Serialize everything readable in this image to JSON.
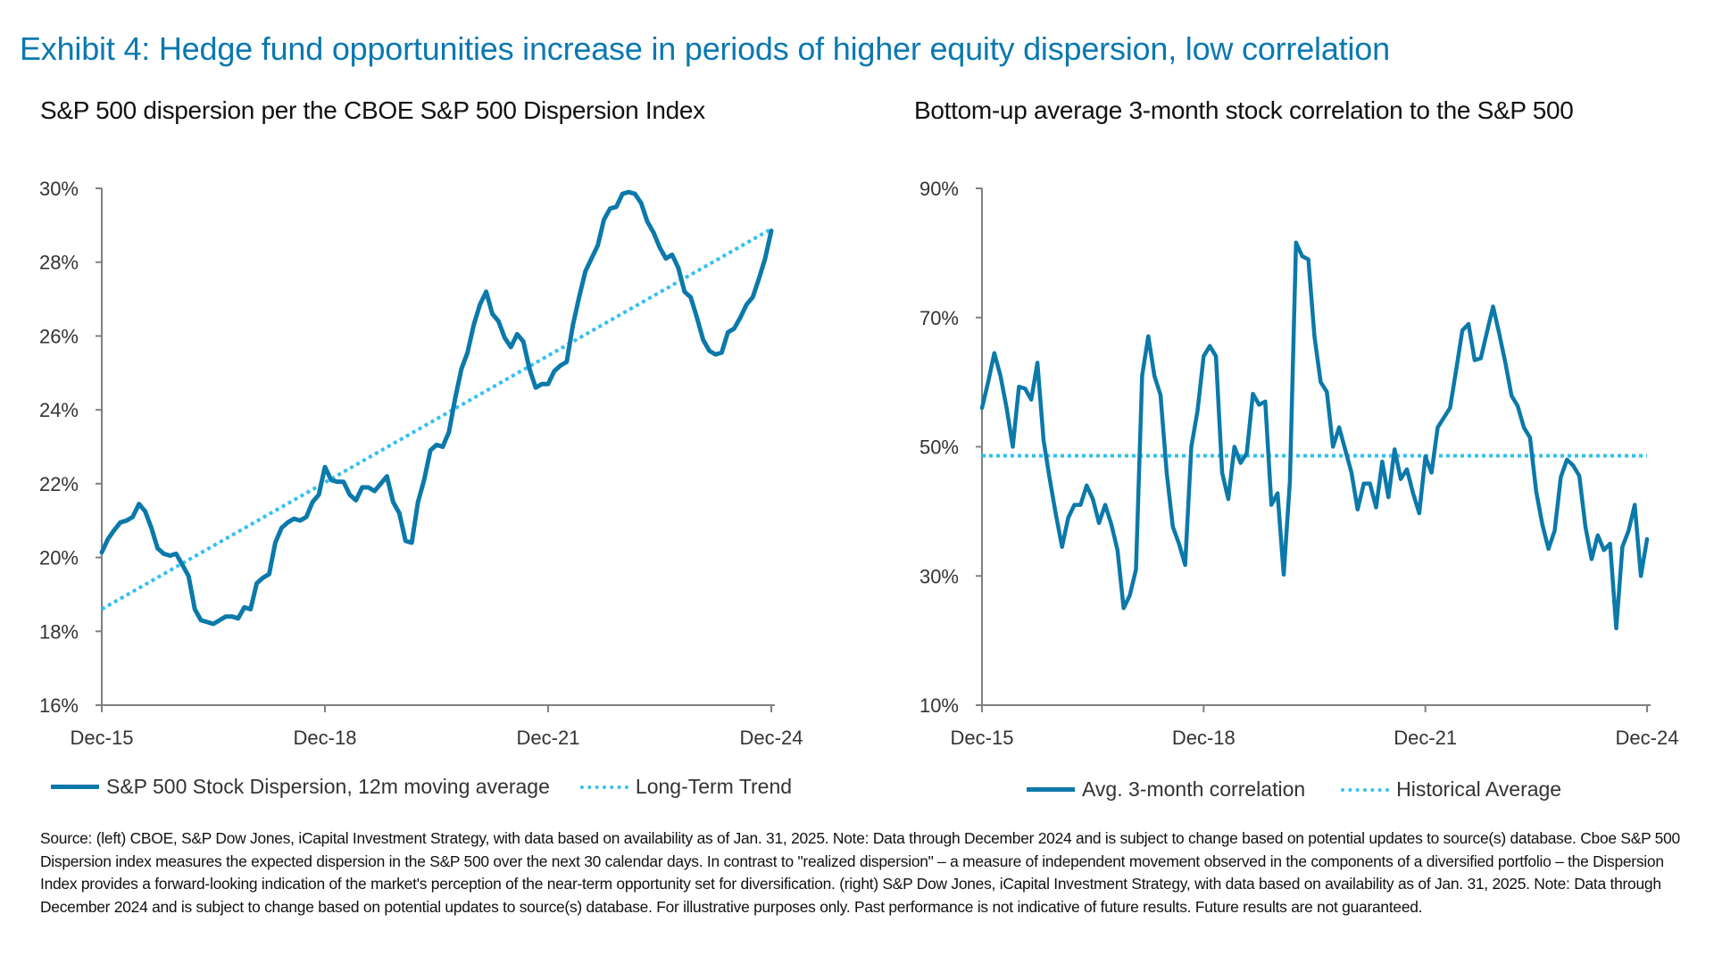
{
  "title": "Exhibit 4: Hedge fund opportunities increase in periods of higher equity dispersion, low correlation",
  "footnote": "Source: (left) CBOE, S&P Dow Jones, iCapital Investment Strategy, with data based on availability as of Jan. 31, 2025. Note: Data through December 2024 and is subject to change based on potential updates to source(s) database. Cboe S&P 500 Dispersion index measures the expected dispersion in the S&P 500 over the next 30 calendar days. In contrast to \"realized dispersion\" – a measure of independent movement observed in the components of a diversified portfolio – the Dispersion Index provides a forward-looking indication of the market's perception of the near-term opportunity set for diversification. (right) S&P Dow Jones, iCapital Investment Strategy, with data based on availability as of Jan. 31, 2025. Note: Data through December 2024 and is subject to change based on potential updates to source(s) database. For illustrative purposes only. Past performance is not indicative of future results. Future results are not guaranteed.",
  "colors": {
    "title": "#0a78b0",
    "series": "#0b79aa",
    "reference": "#33bff3",
    "axis": "#808080"
  },
  "chart_data": [
    {
      "type": "line",
      "title": "S&P 500 dispersion per the CBOE S&P 500 Dispersion Index",
      "x_start": "2015-12",
      "frequency": "monthly",
      "x_ticks": [
        "Dec-15",
        "Dec-18",
        "Dec-21",
        "Dec-24"
      ],
      "y_ticks": [
        "16%",
        "18%",
        "20%",
        "22%",
        "24%",
        "26%",
        "28%",
        "30%"
      ],
      "ylim": [
        16,
        30
      ],
      "y_unit": "%",
      "grid": false,
      "legend_placement": "bottom",
      "series": [
        {
          "name": "S&P 500 Stock Dispersion, 12m moving average",
          "style": "solid",
          "values": [
            20.14,
            20.5,
            20.74,
            20.95,
            21.0,
            21.1,
            21.45,
            21.25,
            20.8,
            20.25,
            20.1,
            20.05,
            20.1,
            19.8,
            19.5,
            18.6,
            18.3,
            18.25,
            18.2,
            18.3,
            18.4,
            18.4,
            18.35,
            18.65,
            18.6,
            19.3,
            19.45,
            19.55,
            20.4,
            20.8,
            20.95,
            21.05,
            21.0,
            21.1,
            21.5,
            21.7,
            22.45,
            22.1,
            22.05,
            22.05,
            21.7,
            21.55,
            21.9,
            21.9,
            21.8,
            22.0,
            22.2,
            21.5,
            21.2,
            20.45,
            20.4,
            21.5,
            22.1,
            22.9,
            23.05,
            23.0,
            23.4,
            24.3,
            25.1,
            25.55,
            26.3,
            26.85,
            27.2,
            26.6,
            26.4,
            25.95,
            25.7,
            26.05,
            25.85,
            25.1,
            24.6,
            24.7,
            24.7,
            25.05,
            25.2,
            25.3,
            26.3,
            27.05,
            27.75,
            28.1,
            28.45,
            29.15,
            29.45,
            29.5,
            29.85,
            29.9,
            29.85,
            29.6,
            29.1,
            28.8,
            28.4,
            28.1,
            28.2,
            27.85,
            27.2,
            27.05,
            26.5,
            25.9,
            25.6,
            25.5,
            25.55,
            26.1,
            26.2,
            26.5,
            26.85,
            27.05,
            27.55,
            28.1,
            28.85
          ]
        },
        {
          "name": "Long-Term Trend",
          "style": "dotted",
          "x": [
            "2015-12",
            "2024-12"
          ],
          "values": [
            18.6,
            28.9
          ]
        }
      ]
    },
    {
      "type": "line",
      "title": "Bottom-up average 3-month stock correlation to the S&P 500",
      "x_start": "2015-12",
      "frequency": "monthly",
      "x_ticks": [
        "Dec-15",
        "Dec-18",
        "Dec-21",
        "Dec-24"
      ],
      "y_ticks": [
        "10%",
        "30%",
        "50%",
        "70%",
        "90%"
      ],
      "ylim": [
        10,
        90
      ],
      "y_unit": "%",
      "grid": false,
      "legend_placement": "bottom",
      "series": [
        {
          "name": "Avg. 3-month correlation",
          "style": "solid",
          "values": [
            56,
            60,
            64.5,
            61,
            56,
            50,
            59.3,
            59,
            57.3,
            63,
            51,
            45,
            39.5,
            34.5,
            39,
            41,
            41,
            44,
            41.9,
            38.2,
            41,
            38,
            34,
            25,
            27,
            31,
            61,
            67.1,
            61,
            58,
            46,
            37.6,
            35,
            31.7,
            50,
            55.5,
            64,
            65.6,
            64,
            46,
            41.9,
            50,
            47.5,
            49,
            58.2,
            56.5,
            57,
            41,
            42.8,
            30.2,
            44.6,
            81.6,
            79.5,
            79,
            67,
            60,
            58.5,
            50,
            53,
            49.5,
            46,
            40.3,
            44.3,
            44.3,
            40.6,
            47.7,
            42.2,
            49.6,
            45,
            46.5,
            42.8,
            39.7,
            48.5,
            46,
            53,
            54.5,
            56,
            61.9,
            68,
            69,
            63.4,
            63.7,
            67.7,
            71.7,
            67.5,
            63,
            57.9,
            56.3,
            53,
            51.4,
            43.1,
            38,
            34.2,
            37,
            45.3,
            48,
            47.1,
            45.5,
            37.6,
            32.6,
            36.3,
            34,
            35,
            21.9,
            34.5,
            37,
            41,
            30,
            35.7
          ]
        },
        {
          "name": "Historical Average",
          "style": "dotted",
          "x": [
            "2015-12",
            "2024-12"
          ],
          "values": [
            48.6,
            48.6
          ]
        }
      ]
    }
  ]
}
